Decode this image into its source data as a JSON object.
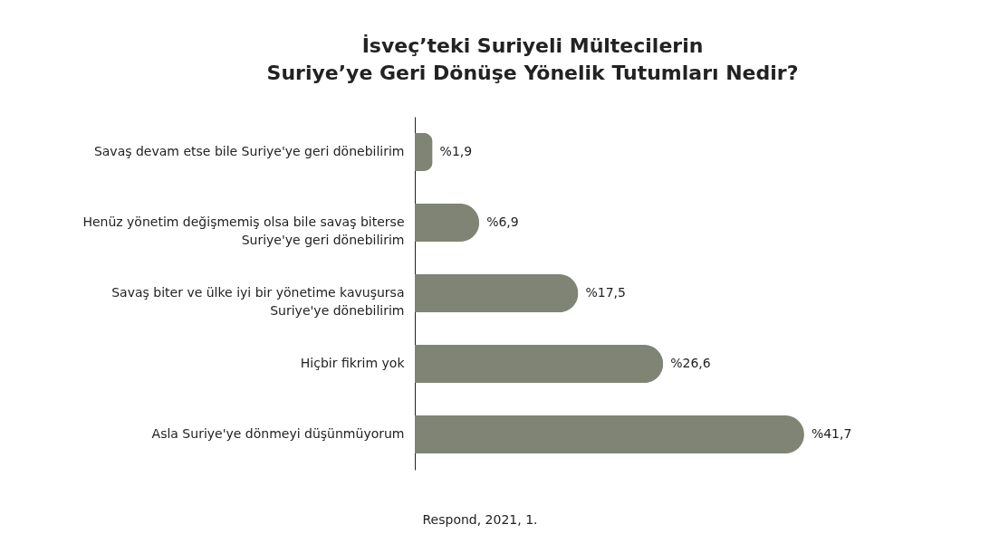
{
  "chart_data": {
    "type": "bar",
    "orientation": "horizontal",
    "title": "İsveç’teki Suriyeli Mültecilerin\nSuriye’ye Geri Dönüşe Yönelik Tutumları Nedir?",
    "categories": [
      "Savaş devam etse bile Suriye'ye geri dönebilirim",
      "Henüz yönetim değişmemiş olsa bile savaş biterse\nSuriye'ye geri dönebilirim",
      "Savaş biter ve ülke iyi bir yönetime kavuşursa\nSuriye'ye dönebilirim",
      "Hiçbir fikrim yok",
      "Asla Suriye'ye dönmeyi düşünmüyorum"
    ],
    "values": [
      1.9,
      6.9,
      17.5,
      26.6,
      41.7
    ],
    "value_labels": [
      "%1,9",
      "%6,9",
      "%17,5",
      "%26,6",
      "%41,7"
    ],
    "color": "#7f8474",
    "annotations": [
      "Respond, 2021, 1."
    ]
  }
}
